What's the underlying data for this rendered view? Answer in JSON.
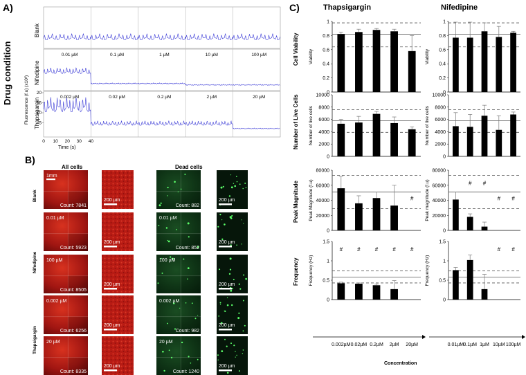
{
  "panel_labels": {
    "A": "A)",
    "B": "B)",
    "C": "C)"
  },
  "panel_a": {
    "side_label": "Drug condition",
    "rows": [
      {
        "label": "Blank",
        "conc": []
      },
      {
        "label": "Nifedipine",
        "conc": [
          "0.01 µM",
          "0.1 µM",
          "1 µM",
          "10 µM",
          "100 µM"
        ]
      },
      {
        "label": "Thapsigargin",
        "conc": [
          "0.002 µM",
          "0.02 µM",
          "0.2 µM",
          "2 µM",
          "20 µM"
        ]
      }
    ],
    "y_axis_label": "Fluorescence (f.u) (x10³)",
    "y_ticks": [
      "20",
      "15",
      "10",
      "5"
    ],
    "x_ticks": [
      "0",
      "10",
      "20",
      "30",
      "40"
    ],
    "x_axis_label": "Time (s)"
  },
  "panel_b": {
    "col_heads": [
      "All cells",
      "Dead cells"
    ],
    "row_labels": [
      "Blank",
      "Nifedipine",
      "Thapsigargin"
    ],
    "scale_top": "1mm",
    "scale_zoom": "200 µm",
    "rows": [
      {
        "conc": "",
        "all": "Count: 7841",
        "dead": "Count: 882"
      },
      {
        "conc": "0.01 µM",
        "all": "Count: 5923",
        "dead": "Count: 852"
      },
      {
        "conc": "100 µM",
        "all": "Count: 8505",
        "dead": ""
      },
      {
        "conc": "0.002 µM",
        "all": "Count: 6256",
        "dead": "Count: 982"
      },
      {
        "conc": "20 µM",
        "all": "Count: 8335",
        "dead": "Count: 1240"
      }
    ]
  },
  "panel_c": {
    "col_titles": [
      "Thapsigargin",
      "Nifedipine"
    ],
    "row_titles": [
      "Cell Viability",
      "Number of Live Cells",
      "Peak Magnitude",
      "Frequency"
    ],
    "xlabel": "Concentration",
    "x_ticks_thapsigargin": [
      "0.002µM",
      "0.02µM",
      "0.2µM",
      "2µM",
      "20µM"
    ],
    "x_ticks_nifedipine": [
      "0.01µM",
      "0.1µM",
      "1µM",
      "10µM",
      "100µM"
    ]
  },
  "colors": {
    "red_image": "#b01a12",
    "green_image": "#0f3a16",
    "trace": "#3b3bd6"
  },
  "chart_data": [
    {
      "type": "bar",
      "title": "Cell Viability",
      "drug": "Thapsigargin",
      "categories": [
        "0.002µM",
        "0.02µM",
        "0.2µM",
        "2µM",
        "20µM"
      ],
      "values": [
        0.82,
        0.85,
        0.88,
        0.86,
        0.58
      ],
      "errors": [
        0.03,
        0.04,
        0.02,
        0.03,
        0.22
      ],
      "ylabel": "Viability",
      "ylim": [
        0,
        1
      ],
      "yticks": [
        "0",
        "0.2",
        "0.4",
        "0.6",
        "0.8",
        "1"
      ],
      "ref_mean": 0.82,
      "ref_band": [
        0.64,
        0.98
      ],
      "markers": [
        "",
        "",
        "",
        "",
        ""
      ]
    },
    {
      "type": "bar",
      "title": "Cell Viability",
      "drug": "Nifedipine",
      "categories": [
        "0.01µM",
        "0.1µM",
        "1µM",
        "10µM",
        "100µM"
      ],
      "values": [
        0.77,
        0.77,
        0.86,
        0.78,
        0.84
      ],
      "errors": [
        0.22,
        0.22,
        0.12,
        0.15,
        0.02
      ],
      "ylabel": "Viability",
      "ylim": [
        0,
        1
      ],
      "yticks": [
        "0",
        "0.2",
        "0.4",
        "0.6",
        "0.8",
        "1"
      ],
      "ref_mean": 0.82,
      "ref_band": [
        0.64,
        0.98
      ],
      "markers": [
        "",
        "",
        "",
        "",
        ""
      ]
    },
    {
      "type": "bar",
      "title": "Number of Live Cells",
      "drug": "Thapsigargin",
      "categories": [
        "0.002µM",
        "0.02µM",
        "0.2µM",
        "2µM",
        "20µM"
      ],
      "values": [
        5300,
        5500,
        6900,
        5400,
        4400
      ],
      "errors": [
        700,
        1000,
        400,
        1000,
        400
      ],
      "ylabel": "Number of live cells",
      "ylim": [
        0,
        10000
      ],
      "yticks": [
        "0",
        "2000",
        "4000",
        "6000",
        "8000",
        "10000"
      ],
      "ref_mean": 5800,
      "ref_band": [
        3900,
        7600
      ],
      "markers": [
        "",
        "",
        "",
        "",
        ""
      ]
    },
    {
      "type": "bar",
      "title": "Number of Live Cells",
      "drug": "Nifedipine",
      "categories": [
        "0.01µM",
        "0.1µM",
        "1µM",
        "10µM",
        "100µM"
      ],
      "values": [
        4900,
        4800,
        6600,
        4300,
        6800
      ],
      "errors": [
        2200,
        2000,
        1700,
        2300,
        400
      ],
      "ylabel": "Number of live cells",
      "ylim": [
        0,
        10000
      ],
      "yticks": [
        "0",
        "2000",
        "4000",
        "6000",
        "8000",
        "10000"
      ],
      "ref_mean": 5800,
      "ref_band": [
        3900,
        7600
      ],
      "markers": [
        "",
        "",
        "",
        "",
        ""
      ]
    },
    {
      "type": "bar",
      "title": "Peak Magnitude",
      "drug": "Thapsigargin",
      "categories": [
        "0.002µM",
        "0.02µM",
        "0.2µM",
        "2µM",
        "20µM"
      ],
      "values": [
        56000,
        36000,
        43000,
        33000,
        0
      ],
      "errors": [
        16000,
        10000,
        8000,
        27000,
        0
      ],
      "ylabel": "Peak Magnitude (f.u)",
      "ylim": [
        0,
        80000
      ],
      "yticks": [
        "0",
        "20000",
        "40000",
        "60000",
        "80000"
      ],
      "ref_mean": 51000,
      "ref_band": [
        29000,
        73000
      ],
      "markers": [
        "",
        "",
        "",
        "",
        "#"
      ]
    },
    {
      "type": "bar",
      "title": "Peak Magnitude",
      "drug": "Nifedipine",
      "categories": [
        "0.01µM",
        "0.1µM",
        "1µM",
        "10µM",
        "100µM"
      ],
      "values": [
        41000,
        18000,
        5000,
        0,
        0
      ],
      "errors": [
        10000,
        4000,
        6000,
        0,
        0
      ],
      "ylabel": "Peak magnitude (f.u)",
      "ylim": [
        0,
        80000
      ],
      "yticks": [
        "0",
        "20000",
        "40000",
        "60000",
        "80000"
      ],
      "ref_mean": 51000,
      "ref_band": [
        29000,
        73000
      ],
      "markers": [
        "",
        "#",
        "#",
        "#",
        "#"
      ]
    },
    {
      "type": "bar",
      "title": "Frequency",
      "drug": "Thapsigargin",
      "categories": [
        "0.002µM",
        "0.02µM",
        "0.2µM",
        "2µM",
        "20µM"
      ],
      "values": [
        0.42,
        0.41,
        0.37,
        0.27,
        0
      ],
      "errors": [
        0.03,
        0.02,
        0.03,
        0.22,
        0
      ],
      "ylabel": "Frequency (Hz)",
      "ylim": [
        0,
        1.5
      ],
      "yticks": [
        "0",
        "0.5",
        "1",
        "1.5"
      ],
      "ref_mean": 0.58,
      "ref_band": [
        0.43,
        0.74
      ],
      "markers": [
        "#",
        "#",
        "#",
        "#",
        "#"
      ]
    },
    {
      "type": "bar",
      "title": "Frequency",
      "drug": "Nifedipine",
      "categories": [
        "0.01µM",
        "0.1µM",
        "1µM",
        "10µM",
        "100µM"
      ],
      "values": [
        0.76,
        1.02,
        0.27,
        0,
        0
      ],
      "errors": [
        0.07,
        0.13,
        0.38,
        0,
        0
      ],
      "ylabel": "Frequency (Hz)",
      "ylim": [
        0,
        1.5
      ],
      "yticks": [
        "0",
        "0.5",
        "1",
        "1.5"
      ],
      "ref_mean": 0.58,
      "ref_band": [
        0.43,
        0.74
      ],
      "markers": [
        "",
        "",
        "",
        "#",
        "#"
      ]
    }
  ]
}
